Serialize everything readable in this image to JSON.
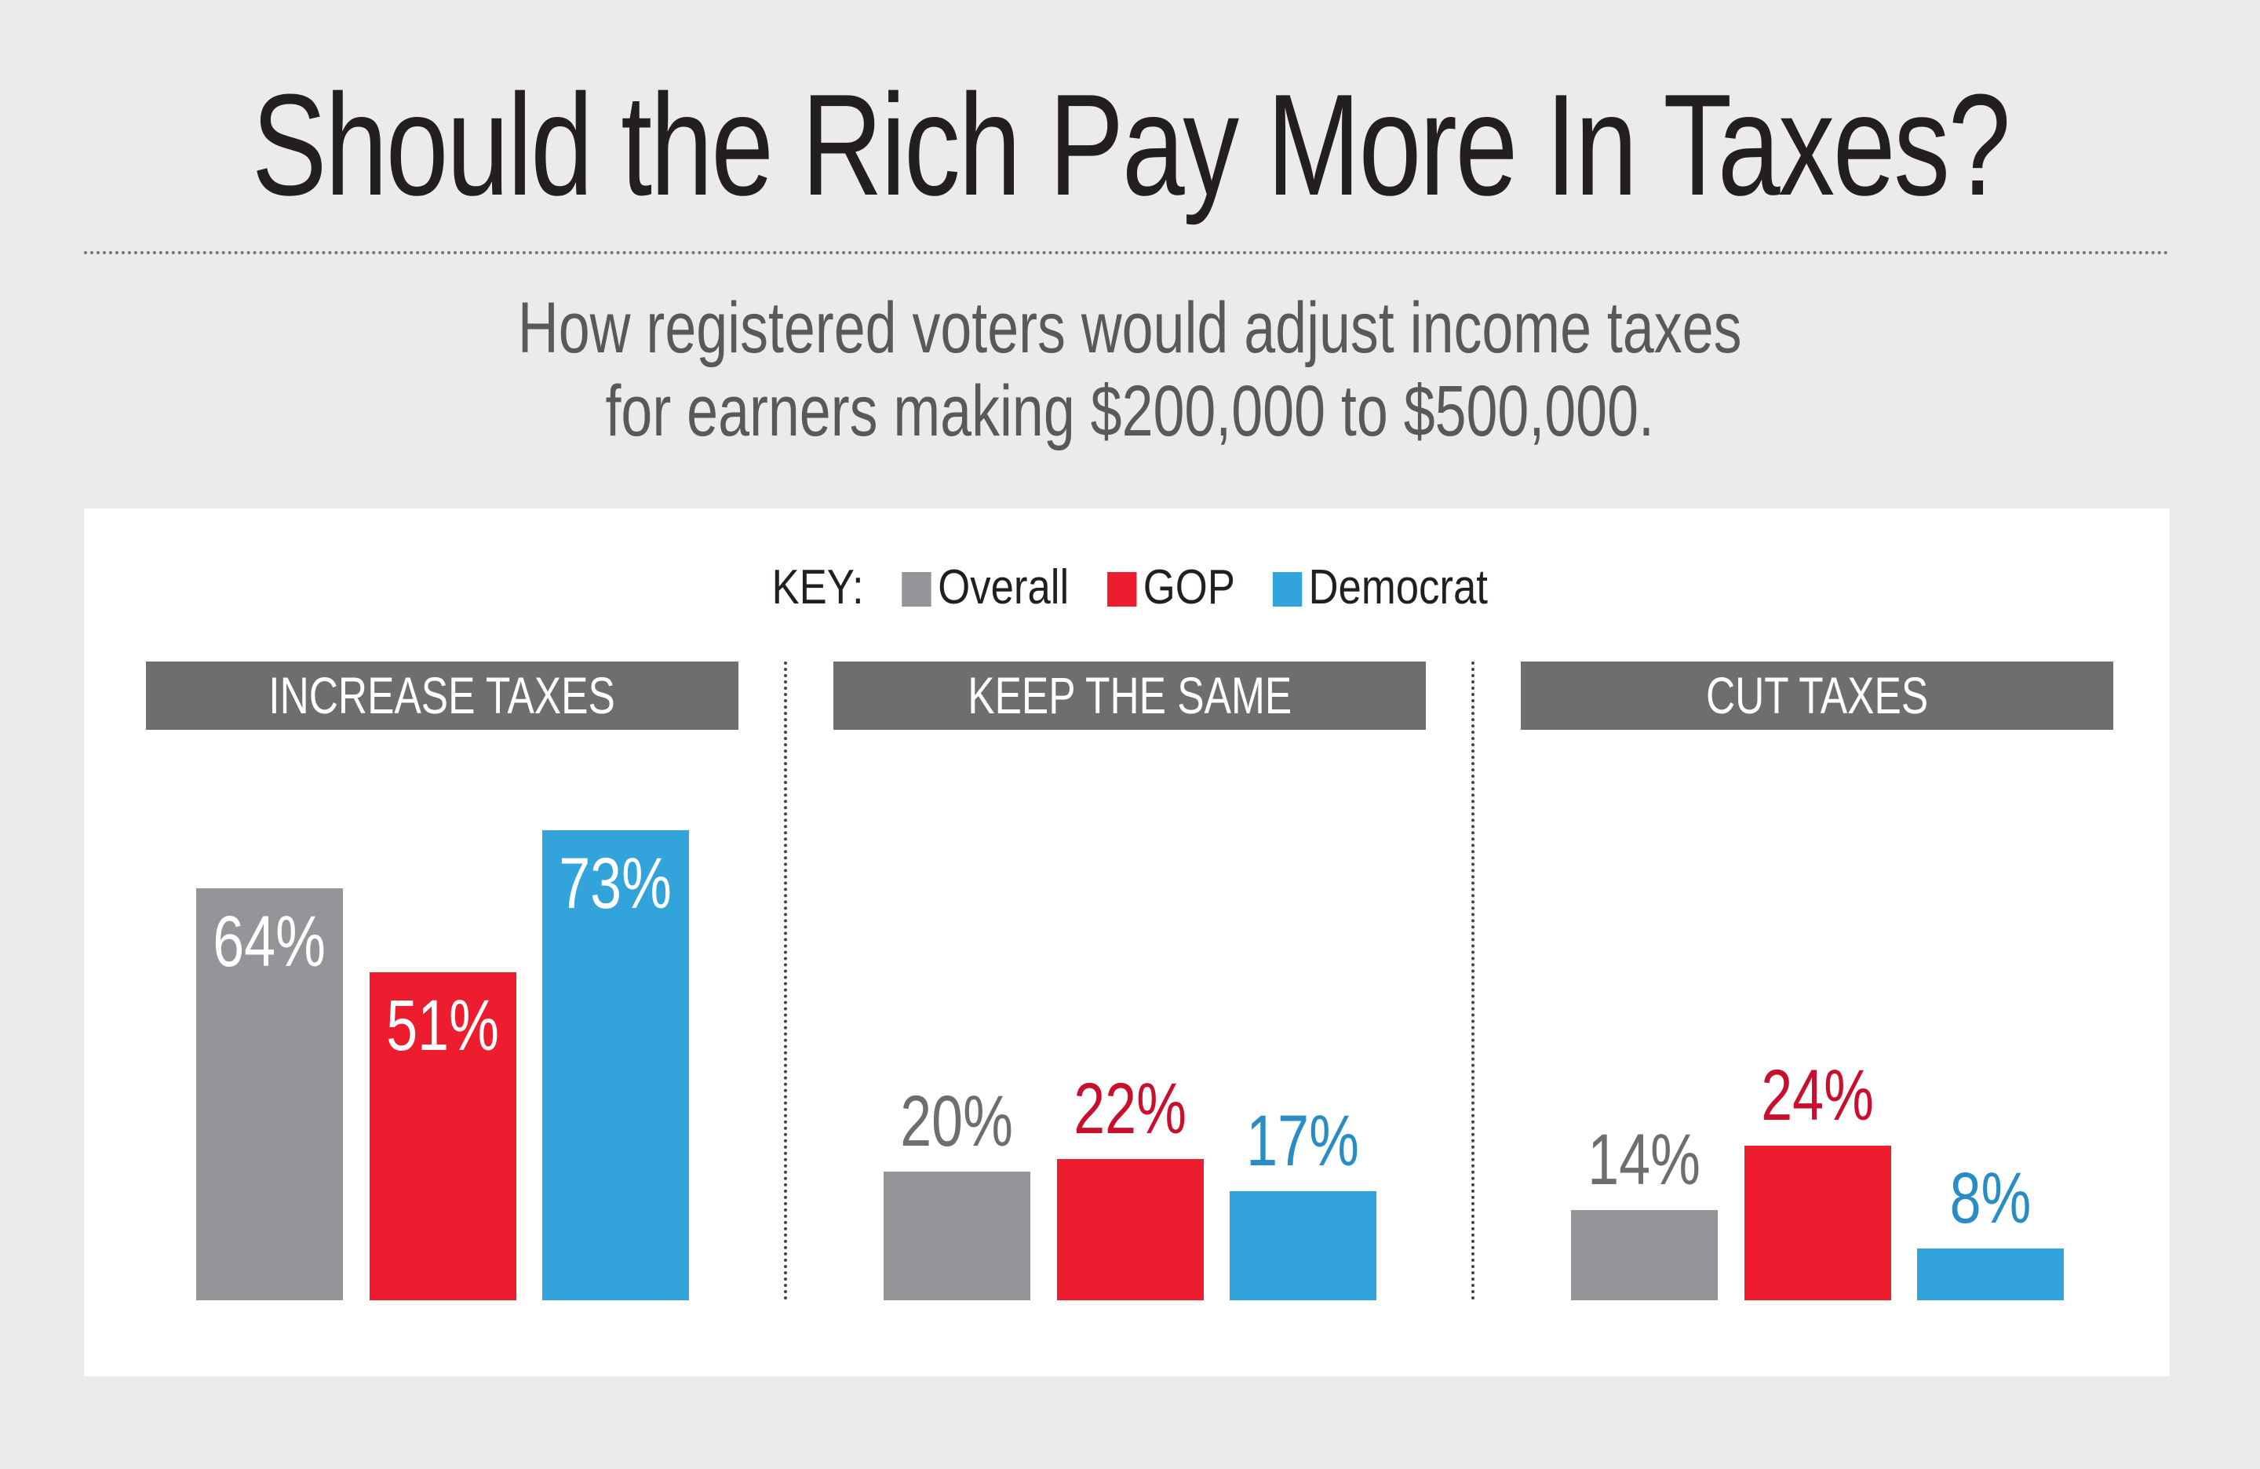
{
  "title": "Should the Rich Pay More In Taxes?",
  "subtitle": [
    "How registered voters would adjust income taxes",
    "for earners making $200,000 to $500,000."
  ],
  "colors": {
    "Overall": "#939598",
    "GOP": "#ed1c2e",
    "Democrat": "#33a3dc",
    "header": "#6d6e70"
  },
  "chart_data": {
    "type": "bar",
    "key_label": "KEY:",
    "categories": [
      "INCREASE TAXES",
      "KEEP THE SAME",
      "CUT TAXES"
    ],
    "series": [
      {
        "name": "Overall",
        "values": [
          64,
          20,
          14
        ],
        "labels": [
          "64%",
          "20%",
          "14%"
        ]
      },
      {
        "name": "GOP",
        "values": [
          51,
          22,
          24
        ],
        "labels": [
          "51%",
          "22%",
          "24%"
        ]
      },
      {
        "name": "Democrat",
        "values": [
          73,
          17,
          8
        ],
        "labels": [
          "73%",
          "17%",
          "8%"
        ]
      }
    ],
    "ylim": [
      0,
      100
    ],
    "grid": false,
    "legend": "top-center"
  }
}
